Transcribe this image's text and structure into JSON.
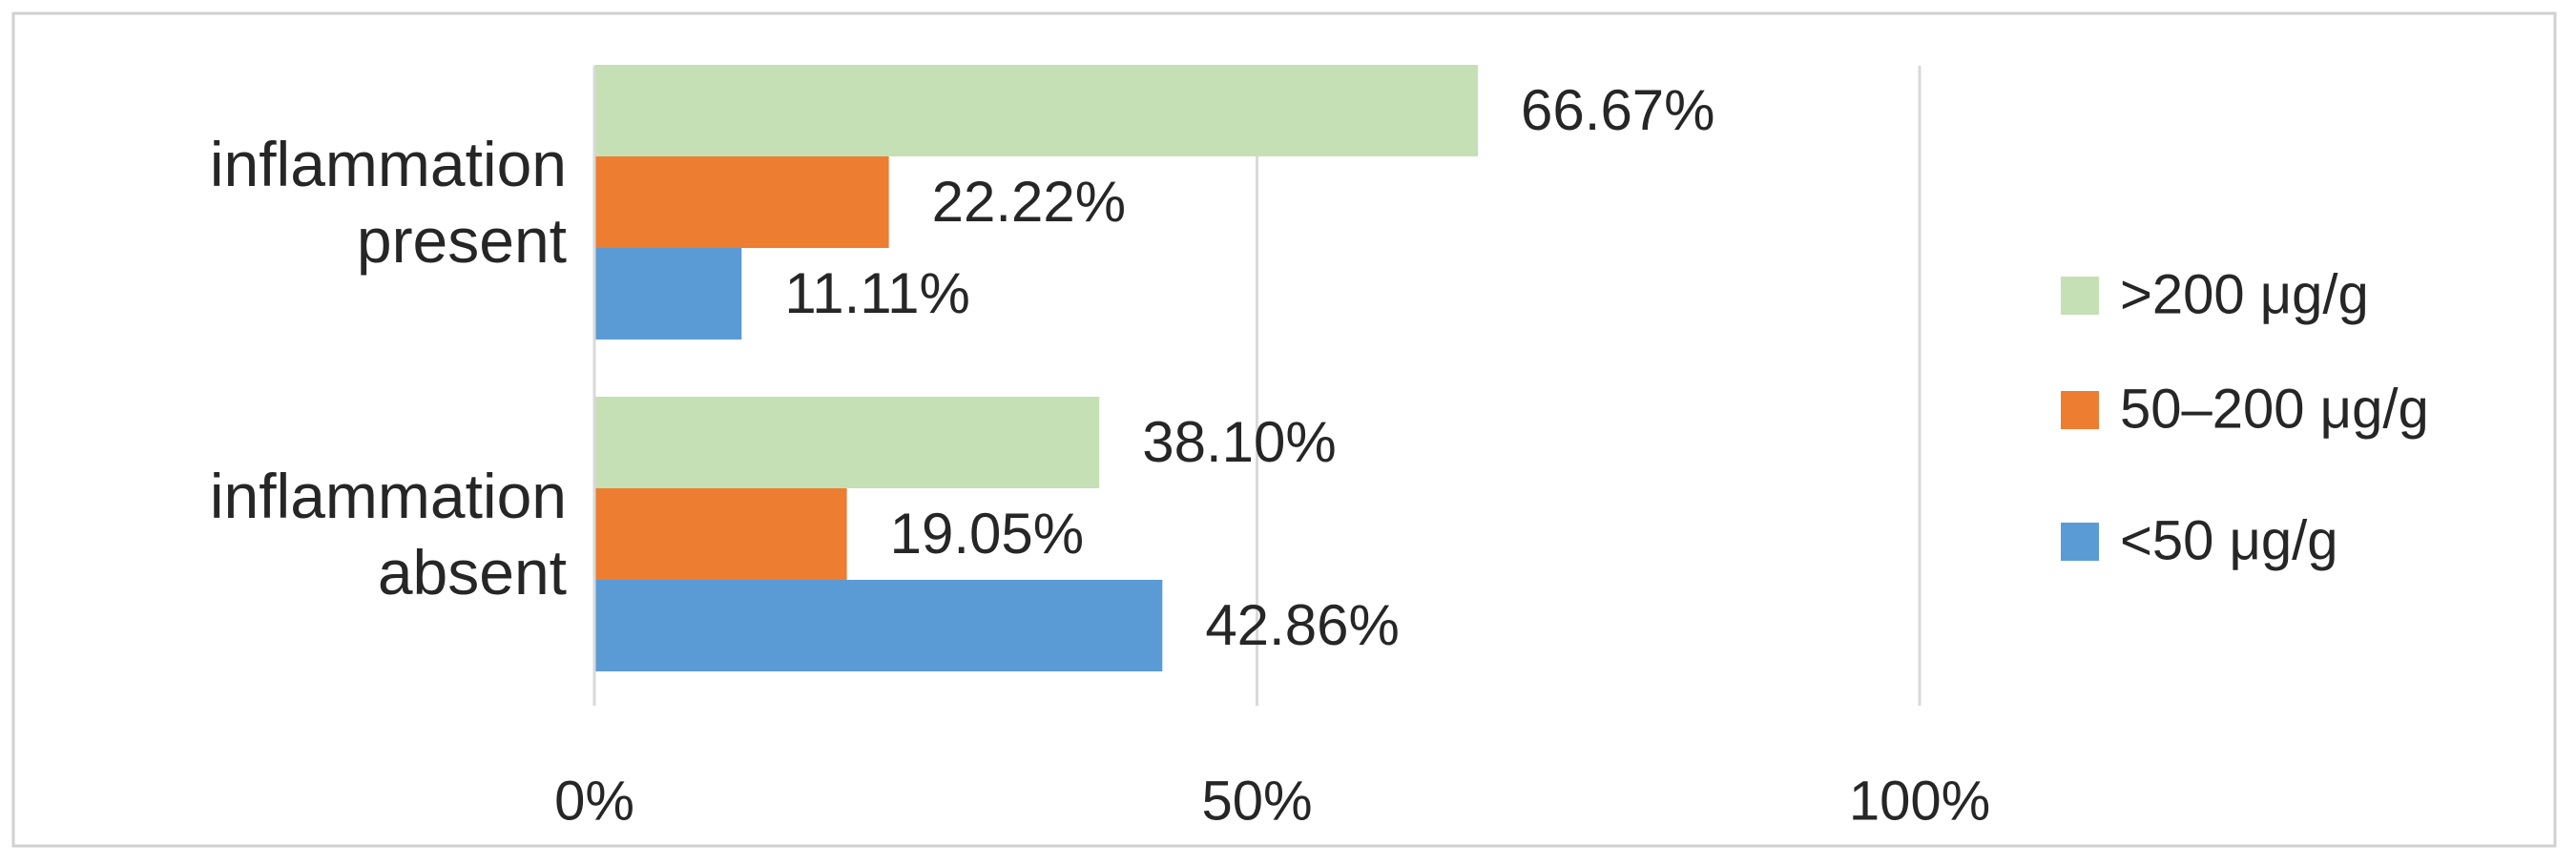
{
  "chart_data": {
    "type": "bar",
    "orientation": "horizontal",
    "categories": [
      "inflammation present",
      "inflammation absent"
    ],
    "series": [
      {
        "name": ">200 μg/g",
        "color": "#c5e0b4",
        "values": [
          66.67,
          38.1
        ],
        "value_labels": [
          "66.67%",
          "38.10%"
        ]
      },
      {
        "name": "50–200 μg/g",
        "color": "#ed7d31",
        "values": [
          22.22,
          19.05
        ],
        "value_labels": [
          "22.22%",
          "19.05%"
        ]
      },
      {
        "name": "<50 μg/g",
        "color": "#5b9bd5",
        "values": [
          11.11,
          42.86
        ],
        "value_labels": [
          "11.11%",
          "42.86%"
        ]
      }
    ],
    "xlim": [
      0,
      100
    ],
    "xticks": [
      {
        "value": 0,
        "label": "0%"
      },
      {
        "value": 50,
        "label": "50%"
      },
      {
        "value": 100,
        "label": "100%"
      }
    ],
    "grid": true,
    "legend": "right"
  }
}
